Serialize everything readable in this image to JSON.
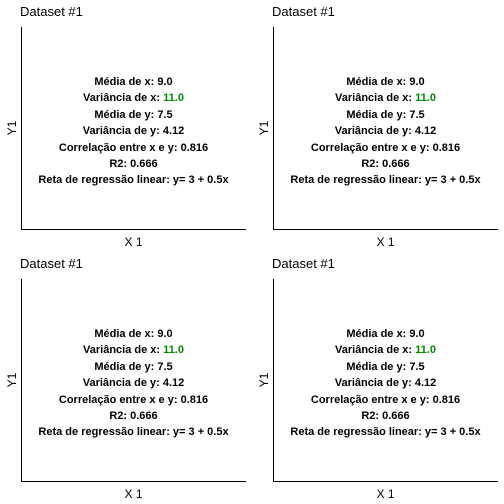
{
  "chart_data": [
    {
      "type": "scatter",
      "title": "Dataset #1",
      "xlabel": "X 1",
      "ylabel": "Y1",
      "series": [],
      "annotations": {
        "mean_x_label": "Média de x:",
        "mean_x_value": "9.0",
        "var_x_label": "Variância de x:",
        "var_x_value": "11.0",
        "mean_y_label": "Média de y:",
        "mean_y_value": "7.5",
        "var_y_label": "Variância de y:",
        "var_y_value": "4.12",
        "corr_label": "Correlação entre x e y:",
        "corr_value": "0.816",
        "r2_label": "R2:",
        "r2_value": "0.666",
        "regression_label": "Reta de regressão linear:",
        "regression_value": "y= 3 + 0.5x"
      }
    },
    {
      "type": "scatter",
      "title": "Dataset #1",
      "xlabel": "X 1",
      "ylabel": "Y1",
      "series": [],
      "annotations": {
        "mean_x_label": "Média de x:",
        "mean_x_value": "9.0",
        "var_x_label": "Variância de x:",
        "var_x_value": "11.0",
        "mean_y_label": "Média de y:",
        "mean_y_value": "7.5",
        "var_y_label": "Variância de y:",
        "var_y_value": "4.12",
        "corr_label": "Correlação entre x e y:",
        "corr_value": "0.816",
        "r2_label": "R2:",
        "r2_value": "0.666",
        "regression_label": "Reta de regressão linear:",
        "regression_value": "y= 3 + 0.5x"
      }
    },
    {
      "type": "scatter",
      "title": "Dataset #1",
      "xlabel": "X 1",
      "ylabel": "Y1",
      "series": [],
      "annotations": {
        "mean_x_label": "Média de x:",
        "mean_x_value": "9.0",
        "var_x_label": "Variância de x:",
        "var_x_value": "11.0",
        "mean_y_label": "Média de y:",
        "mean_y_value": "7.5",
        "var_y_label": "Variância de y:",
        "var_y_value": "4.12",
        "corr_label": "Correlação entre x e y:",
        "corr_value": "0.816",
        "r2_label": "R2:",
        "r2_value": "0.666",
        "regression_label": "Reta de regressão linear:",
        "regression_value": "y= 3 + 0.5x"
      }
    },
    {
      "type": "scatter",
      "title": "Dataset #1",
      "xlabel": "X 1",
      "ylabel": "Y1",
      "series": [],
      "annotations": {
        "mean_x_label": "Média de x:",
        "mean_x_value": "9.0",
        "var_x_label": "Variância de x:",
        "var_x_value": "11.0",
        "mean_y_label": "Média de y:",
        "mean_y_value": "7.5",
        "var_y_label": "Variância de y:",
        "var_y_value": "4.12",
        "corr_label": "Correlação entre x e y:",
        "corr_value": "0.816",
        "r2_label": "R2:",
        "r2_value": "0.666",
        "regression_label": "Reta de regressão linear:",
        "regression_value": "y= 3 + 0.5x"
      }
    }
  ],
  "colors": {
    "accent_value": "#008a00",
    "text": "#000000",
    "axis": "#000000"
  }
}
